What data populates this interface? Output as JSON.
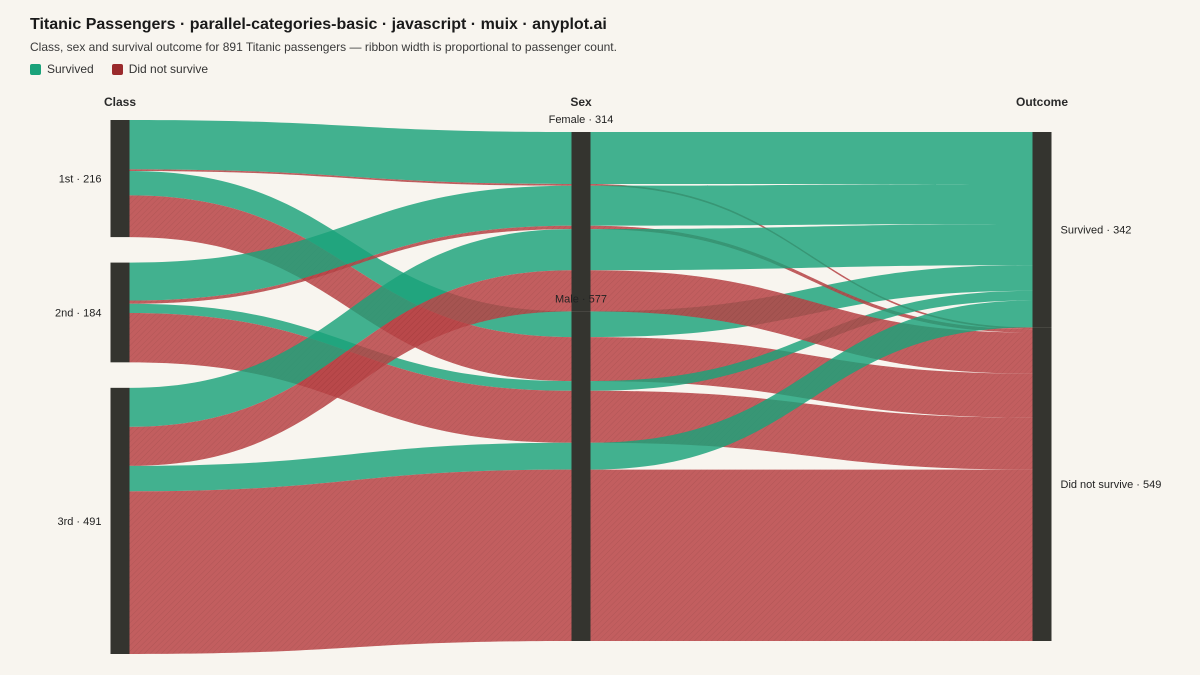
{
  "header": {
    "title": "Titanic Passengers · parallel-categories-basic · javascript · muix · anyplot.ai",
    "subtitle": "Class, sex and survival outcome for 891 Titanic passengers — ribbon width is proportional to passenger count."
  },
  "colors": {
    "survived": "#1aa27a",
    "not_survived": "#b84446",
    "node": "#34342f",
    "background": "#f8f5ef"
  },
  "chart_data": {
    "type": "parallel-categories",
    "legend": [
      {
        "key": "survived",
        "label": "Survived"
      },
      {
        "key": "not_survived",
        "label": "Did not survive"
      }
    ],
    "dimensions": [
      {
        "name": "Class",
        "categories": [
          {
            "key": "1st",
            "label": "1st · 216",
            "count": 216
          },
          {
            "key": "2nd",
            "label": "2nd · 184",
            "count": 184
          },
          {
            "key": "3rd",
            "label": "3rd · 491",
            "count": 491
          }
        ]
      },
      {
        "name": "Sex",
        "categories": [
          {
            "key": "female",
            "label": "Female · 314",
            "count": 314
          },
          {
            "key": "male",
            "label": "Male · 577",
            "count": 577
          }
        ]
      },
      {
        "name": "Outcome",
        "categories": [
          {
            "key": "survived",
            "label": "Survived · 342",
            "count": 342
          },
          {
            "key": "not_survived",
            "label": "Did not survive · 549",
            "count": 549
          }
        ]
      }
    ],
    "flows": [
      {
        "class": "1st",
        "sex": "female",
        "outcome": "survived",
        "count": 91
      },
      {
        "class": "1st",
        "sex": "female",
        "outcome": "not_survived",
        "count": 3
      },
      {
        "class": "1st",
        "sex": "male",
        "outcome": "survived",
        "count": 45
      },
      {
        "class": "1st",
        "sex": "male",
        "outcome": "not_survived",
        "count": 77
      },
      {
        "class": "2nd",
        "sex": "female",
        "outcome": "survived",
        "count": 70
      },
      {
        "class": "2nd",
        "sex": "female",
        "outcome": "not_survived",
        "count": 6
      },
      {
        "class": "2nd",
        "sex": "male",
        "outcome": "survived",
        "count": 17
      },
      {
        "class": "2nd",
        "sex": "male",
        "outcome": "not_survived",
        "count": 91
      },
      {
        "class": "3rd",
        "sex": "female",
        "outcome": "survived",
        "count": 72
      },
      {
        "class": "3rd",
        "sex": "female",
        "outcome": "not_survived",
        "count": 72
      },
      {
        "class": "3rd",
        "sex": "male",
        "outcome": "survived",
        "count": 47
      },
      {
        "class": "3rd",
        "sex": "male",
        "outcome": "not_survived",
        "count": 300
      }
    ]
  }
}
